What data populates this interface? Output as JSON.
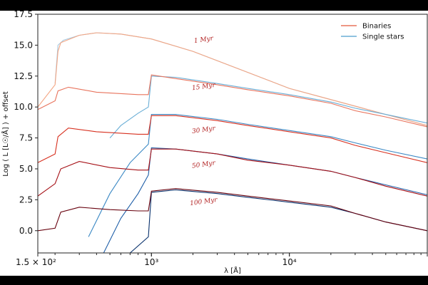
{
  "chart_data": {
    "type": "line",
    "title": "",
    "xlabel": "λ [Å]",
    "ylabel": "Log ( L [L☉/Å] ) + offset",
    "xscale": "log",
    "xlim": [
      150,
      100000
    ],
    "ylim": [
      -1.8,
      17.5
    ],
    "grid": false,
    "legend": {
      "position": "top-right"
    },
    "x_ticks": [
      {
        "value": 150,
        "label": "1.5 × 10²"
      },
      {
        "value": 1000,
        "label": "10³"
      },
      {
        "value": 10000,
        "label": "10⁴"
      }
    ],
    "y_ticks": [
      {
        "value": 0.0,
        "label": "0.0"
      },
      {
        "value": 2.5,
        "label": "2.5"
      },
      {
        "value": 5.0,
        "label": "5.0"
      },
      {
        "value": 7.5,
        "label": "7.5"
      },
      {
        "value": 10.0,
        "label": "10.0"
      },
      {
        "value": 12.5,
        "label": "12.5"
      },
      {
        "value": 15.0,
        "label": "15.0"
      },
      {
        "value": 17.5,
        "label": "17.5"
      }
    ],
    "series_types": [
      {
        "name": "Binaries",
        "color": "#e8735c"
      },
      {
        "name": "Single stars",
        "color": "#6aaed6"
      }
    ],
    "ages": [
      {
        "label": "1 Myr",
        "label_pos": [
          2400,
          15.3
        ],
        "binary_color": "#f4a582",
        "single_color": "#a6c8e0",
        "binary": [
          [
            150,
            10.0
          ],
          [
            200,
            11.8
          ],
          [
            210,
            14.5
          ],
          [
            220,
            15.2
          ],
          [
            300,
            15.8
          ],
          [
            400,
            16.0
          ],
          [
            600,
            15.9
          ],
          [
            1000,
            15.5
          ],
          [
            2000,
            14.5
          ],
          [
            5000,
            12.8
          ],
          [
            10000,
            11.5
          ],
          [
            20000,
            10.6
          ],
          [
            50000,
            9.4
          ],
          [
            100000,
            8.5
          ]
        ],
        "single": [
          [
            200,
            11.9
          ],
          [
            210,
            15.0
          ],
          [
            230,
            15.4
          ],
          [
            300,
            15.8
          ],
          [
            400,
            16.0
          ],
          [
            600,
            15.9
          ],
          [
            1000,
            15.5
          ],
          [
            2000,
            14.5
          ],
          [
            5000,
            12.8
          ],
          [
            10000,
            11.5
          ],
          [
            20000,
            10.6
          ],
          [
            50000,
            9.4
          ],
          [
            100000,
            8.5
          ]
        ]
      },
      {
        "label": "15 Myr",
        "label_pos": [
          2400,
          11.5
        ],
        "binary_color": "#e8735c",
        "single_color": "#6aaed6",
        "binary": [
          [
            150,
            9.8
          ],
          [
            200,
            10.5
          ],
          [
            210,
            11.3
          ],
          [
            250,
            11.6
          ],
          [
            400,
            11.2
          ],
          [
            800,
            11.0
          ],
          [
            950,
            11.0
          ],
          [
            1000,
            12.6
          ],
          [
            1500,
            12.3
          ],
          [
            3000,
            11.8
          ],
          [
            5000,
            11.4
          ],
          [
            10000,
            10.9
          ],
          [
            20000,
            10.3
          ],
          [
            30000,
            9.7
          ],
          [
            50000,
            9.2
          ],
          [
            100000,
            8.4
          ]
        ],
        "single": [
          [
            500,
            7.5
          ],
          [
            600,
            8.5
          ],
          [
            800,
            9.5
          ],
          [
            950,
            10.0
          ],
          [
            1000,
            12.5
          ],
          [
            1500,
            12.4
          ],
          [
            3000,
            11.9
          ],
          [
            5000,
            11.5
          ],
          [
            10000,
            11.0
          ],
          [
            20000,
            10.4
          ],
          [
            30000,
            9.9
          ],
          [
            50000,
            9.4
          ],
          [
            100000,
            8.7
          ]
        ]
      },
      {
        "label": "30 Myr",
        "label_pos": [
          2400,
          8.0
        ],
        "binary_color": "#d7301f",
        "single_color": "#3a88c4",
        "binary": [
          [
            150,
            5.5
          ],
          [
            200,
            6.2
          ],
          [
            210,
            7.6
          ],
          [
            250,
            8.3
          ],
          [
            400,
            8.0
          ],
          [
            800,
            7.8
          ],
          [
            950,
            7.8
          ],
          [
            1000,
            9.3
          ],
          [
            1500,
            9.3
          ],
          [
            3000,
            8.9
          ],
          [
            5000,
            8.5
          ],
          [
            10000,
            8.0
          ],
          [
            20000,
            7.5
          ],
          [
            30000,
            6.9
          ],
          [
            50000,
            6.3
          ],
          [
            100000,
            5.5
          ]
        ],
        "single": [
          [
            350,
            -0.5
          ],
          [
            500,
            3.0
          ],
          [
            700,
            5.5
          ],
          [
            950,
            7.0
          ],
          [
            1000,
            9.4
          ],
          [
            1500,
            9.4
          ],
          [
            3000,
            9.0
          ],
          [
            5000,
            8.6
          ],
          [
            10000,
            8.1
          ],
          [
            20000,
            7.6
          ],
          [
            30000,
            7.1
          ],
          [
            50000,
            6.5
          ],
          [
            100000,
            5.8
          ]
        ]
      },
      {
        "label": "50 Myr",
        "label_pos": [
          2400,
          5.2
        ],
        "binary_color": "#a50f15",
        "single_color": "#1f5fa8",
        "binary": [
          [
            150,
            2.8
          ],
          [
            200,
            3.8
          ],
          [
            220,
            5.0
          ],
          [
            300,
            5.6
          ],
          [
            500,
            5.1
          ],
          [
            800,
            4.9
          ],
          [
            950,
            4.9
          ],
          [
            1000,
            6.6
          ],
          [
            1500,
            6.6
          ],
          [
            3000,
            6.2
          ],
          [
            5000,
            5.7
          ],
          [
            10000,
            5.3
          ],
          [
            20000,
            4.8
          ],
          [
            30000,
            4.3
          ],
          [
            50000,
            3.6
          ],
          [
            100000,
            2.8
          ]
        ],
        "single": [
          [
            450,
            -1.8
          ],
          [
            600,
            1.0
          ],
          [
            800,
            3.0
          ],
          [
            950,
            4.5
          ],
          [
            1000,
            6.7
          ],
          [
            1500,
            6.6
          ],
          [
            3000,
            6.2
          ],
          [
            5000,
            5.8
          ],
          [
            10000,
            5.3
          ],
          [
            20000,
            4.8
          ],
          [
            30000,
            4.3
          ],
          [
            50000,
            3.7
          ],
          [
            100000,
            2.9
          ]
        ]
      },
      {
        "label": "100 Myr",
        "label_pos": [
          2400,
          2.2
        ],
        "binary_color": "#67000d",
        "single_color": "#08306b",
        "binary": [
          [
            150,
            0.0
          ],
          [
            200,
            0.2
          ],
          [
            220,
            1.5
          ],
          [
            300,
            1.9
          ],
          [
            500,
            1.7
          ],
          [
            800,
            1.6
          ],
          [
            950,
            1.6
          ],
          [
            1000,
            3.2
          ],
          [
            1500,
            3.4
          ],
          [
            3000,
            3.1
          ],
          [
            5000,
            2.8
          ],
          [
            10000,
            2.4
          ],
          [
            20000,
            2.0
          ],
          [
            30000,
            1.4
          ],
          [
            50000,
            0.7
          ],
          [
            100000,
            0.0
          ]
        ],
        "single": [
          [
            700,
            -1.8
          ],
          [
            950,
            -0.5
          ],
          [
            1000,
            3.1
          ],
          [
            1500,
            3.3
          ],
          [
            3000,
            3.0
          ],
          [
            5000,
            2.7
          ],
          [
            10000,
            2.3
          ],
          [
            20000,
            1.9
          ],
          [
            30000,
            1.4
          ],
          [
            50000,
            0.7
          ],
          [
            100000,
            0.0
          ]
        ]
      }
    ]
  }
}
